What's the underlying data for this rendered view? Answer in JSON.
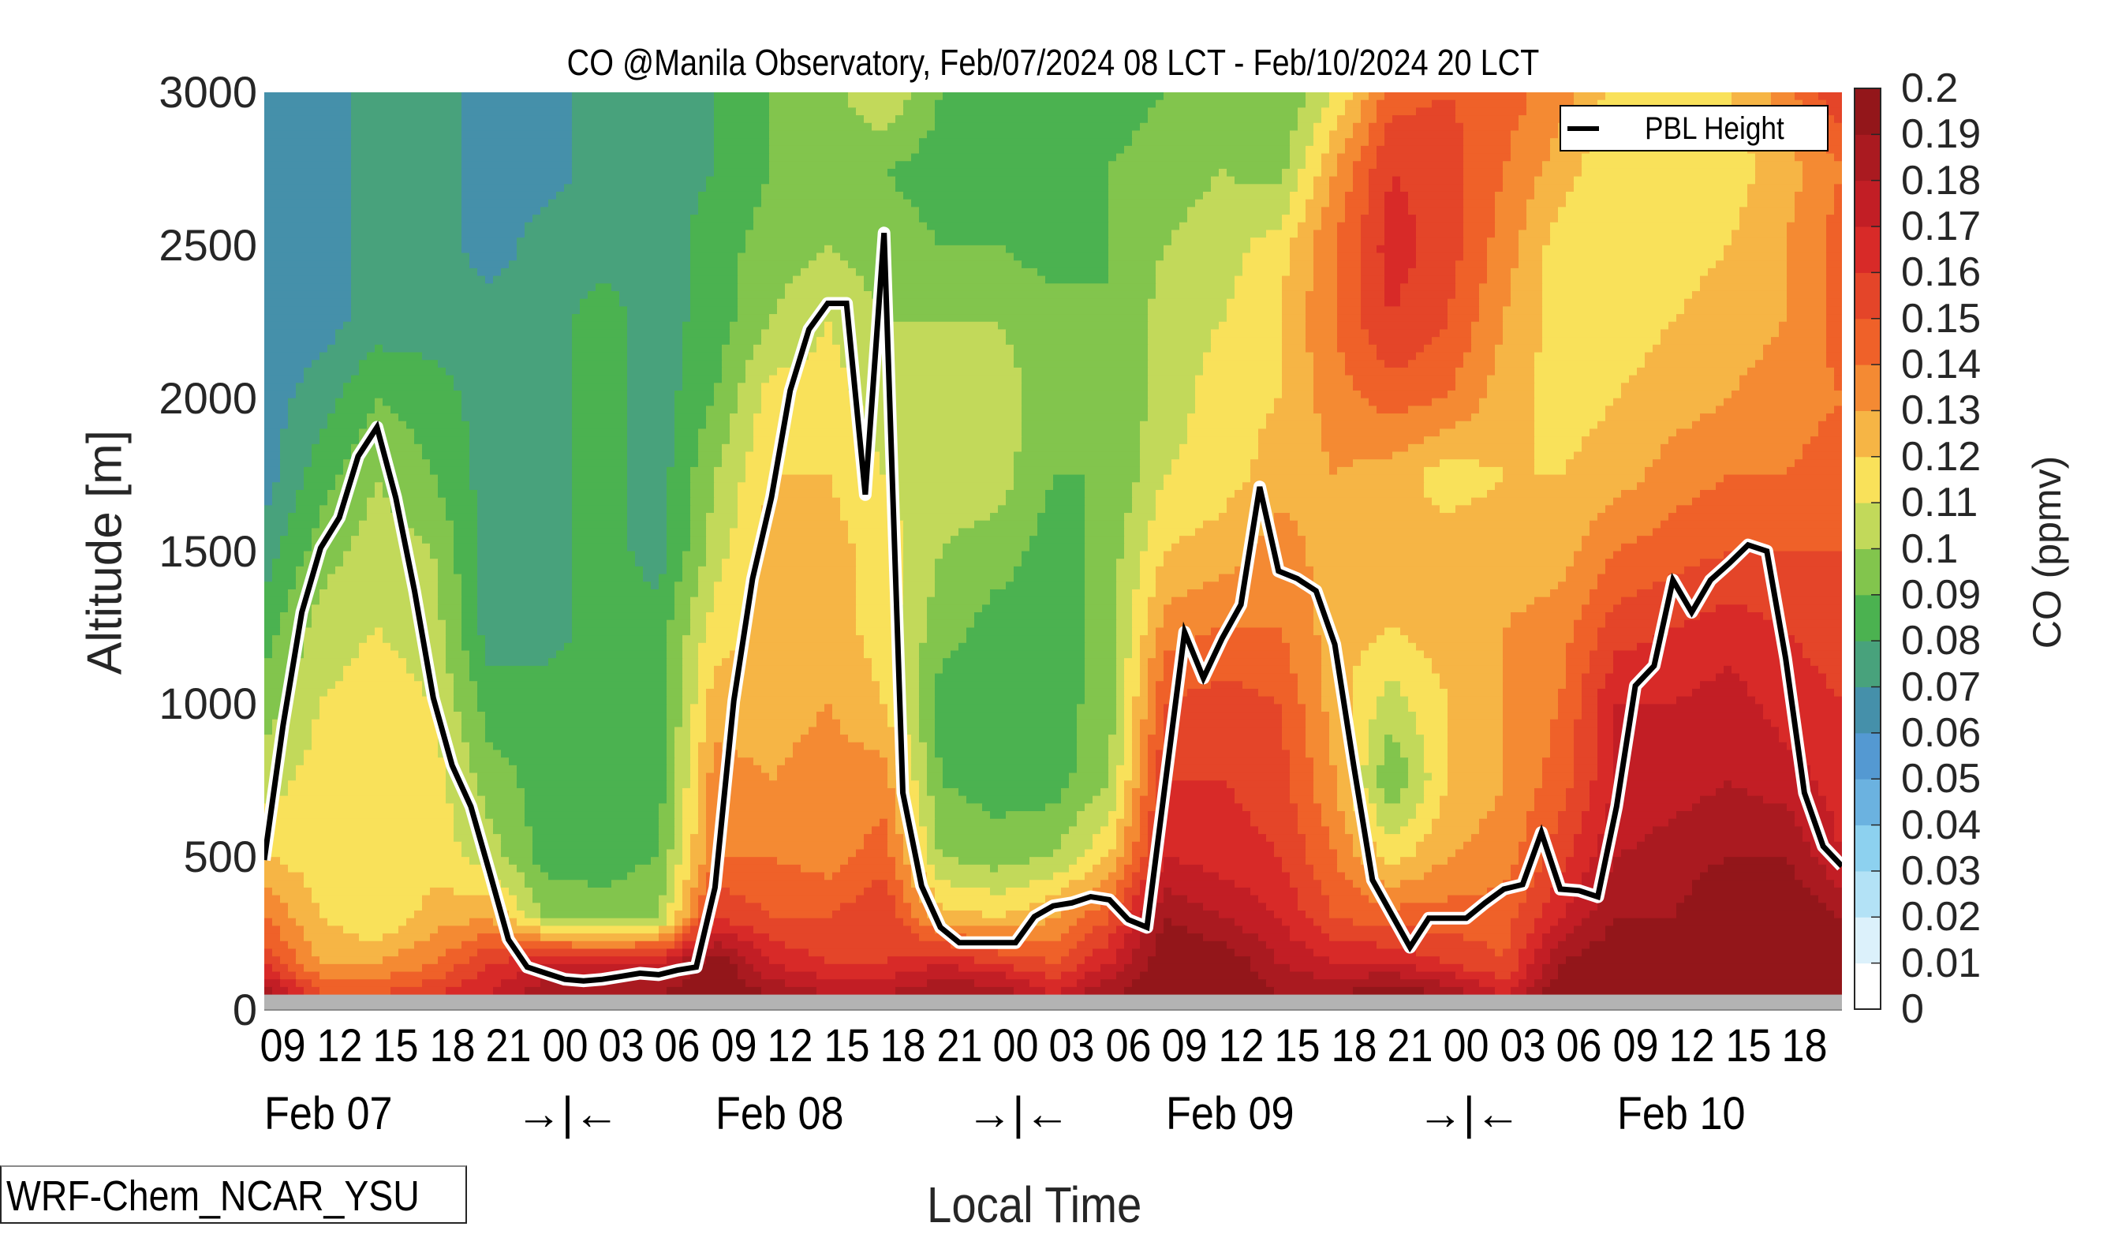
{
  "chart_data": {
    "type": "heatmap",
    "subtype": "filled-contour time-altitude cross-section with line overlay",
    "title": "CO @Manila Observatory, Feb/07/2024 08 LCT - Feb/10/2024 20 LCT",
    "xlabel": "Local Time",
    "ylabel": "Altitude [m]",
    "colorbar_label": "CO (ppmv)",
    "ylim": [
      0,
      3000
    ],
    "xlim_hours_from_start": [
      0,
      84
    ],
    "start": "Feb/07/2024 08 LCT",
    "end": "Feb/10/2024 20 LCT",
    "y_ticks": [
      "0",
      "500",
      "1000",
      "1500",
      "2000",
      "2500",
      "3000"
    ],
    "y_tick_values": [
      0,
      500,
      1000,
      1500,
      2000,
      2500,
      3000
    ],
    "x_tick_labels": [
      "09",
      "12",
      "15",
      "18",
      "21",
      "00",
      "03",
      "06",
      "09",
      "12",
      "15",
      "18",
      "21",
      "00",
      "03",
      "06",
      "09",
      "12",
      "15",
      "18",
      "21",
      "00",
      "03",
      "06",
      "09",
      "12",
      "15",
      "18"
    ],
    "x_tick_hours": [
      1,
      4,
      7,
      10,
      13,
      16,
      19,
      22,
      25,
      28,
      31,
      34,
      37,
      40,
      43,
      46,
      49,
      52,
      55,
      58,
      61,
      64,
      67,
      70,
      73,
      76,
      79,
      82
    ],
    "day_labels": [
      {
        "text": "Feb 07",
        "hour": 4
      },
      {
        "text": "Feb 08",
        "hour": 28
      },
      {
        "text": "Feb 09",
        "hour": 52
      },
      {
        "text": "Feb 10",
        "hour": 76
      }
    ],
    "day_separators": [
      {
        "text": "→|←",
        "hour": 16
      },
      {
        "text": "→|←",
        "hour": 40
      },
      {
        "text": "→|←",
        "hour": 64
      }
    ],
    "colorbar": {
      "levels": [
        0,
        0.01,
        0.02,
        0.03,
        0.04,
        0.05,
        0.06,
        0.07,
        0.08,
        0.09,
        0.1,
        0.11,
        0.12,
        0.13,
        0.14,
        0.15,
        0.16,
        0.17,
        0.18,
        0.19,
        0.2
      ],
      "tick_labels": [
        "0",
        "0.01",
        "0.02",
        "0.03",
        "0.04",
        "0.05",
        "0.06",
        "0.07",
        "0.08",
        "0.09",
        "0.1",
        "0.11",
        "0.12",
        "0.13",
        "0.14",
        "0.15",
        "0.16",
        "0.17",
        "0.18",
        "0.19",
        "0.2"
      ],
      "colors": [
        "#ffffff",
        "#dcf1fb",
        "#b3e2f6",
        "#8dd1ef",
        "#6bb2e0",
        "#5499d2",
        "#4590aa",
        "#48a27c",
        "#4bb250",
        "#82c54d",
        "#c2d95a",
        "#f9e15a",
        "#f6b545",
        "#f48a33",
        "#ef6129",
        "#e44529",
        "#d82a28",
        "#c21e25",
        "#aa1a20",
        "#93161a"
      ]
    },
    "ground_mask_color": "#b3b3b3",
    "ground_mask_top_m": 50,
    "grid_hours": [
      0,
      3,
      6,
      9,
      12,
      15,
      18,
      21,
      24,
      27,
      30,
      33,
      36,
      39,
      42,
      45,
      48,
      51,
      54,
      57,
      60,
      63,
      66,
      69,
      72,
      75,
      78,
      81,
      84
    ],
    "grid_altitudes": [
      50,
      150,
      300,
      500,
      750,
      1000,
      1250,
      1500,
      1750,
      2000,
      2250,
      2500,
      2750,
      3000
    ],
    "co_ppmv": [
      [
        0.19,
        0.15,
        0.15,
        0.16,
        0.17,
        0.19,
        0.19,
        0.19,
        0.2,
        0.19,
        0.18,
        0.18,
        0.19,
        0.19,
        0.17,
        0.19,
        0.2,
        0.2,
        0.19,
        0.19,
        0.2,
        0.19,
        0.17,
        0.2,
        0.2,
        0.2,
        0.2,
        0.2,
        0.2
      ],
      [
        0.16,
        0.13,
        0.13,
        0.14,
        0.16,
        0.17,
        0.17,
        0.17,
        0.2,
        0.17,
        0.16,
        0.16,
        0.17,
        0.16,
        0.15,
        0.17,
        0.2,
        0.2,
        0.18,
        0.17,
        0.17,
        0.16,
        0.15,
        0.19,
        0.2,
        0.2,
        0.2,
        0.2,
        0.2
      ],
      [
        0.14,
        0.12,
        0.11,
        0.125,
        0.13,
        0.1,
        0.095,
        0.1,
        0.16,
        0.15,
        0.15,
        0.16,
        0.125,
        0.12,
        0.13,
        0.15,
        0.19,
        0.18,
        0.17,
        0.15,
        0.145,
        0.145,
        0.145,
        0.17,
        0.19,
        0.19,
        0.2,
        0.2,
        0.19
      ],
      [
        0.12,
        0.115,
        0.115,
        0.115,
        0.105,
        0.085,
        0.085,
        0.09,
        0.14,
        0.14,
        0.135,
        0.145,
        0.1,
        0.095,
        0.1,
        0.12,
        0.17,
        0.165,
        0.16,
        0.14,
        0.115,
        0.13,
        0.135,
        0.155,
        0.18,
        0.185,
        0.19,
        0.19,
        0.17
      ],
      [
        0.105,
        0.115,
        0.115,
        0.115,
        0.095,
        0.085,
        0.085,
        0.085,
        0.135,
        0.13,
        0.135,
        0.135,
        0.09,
        0.085,
        0.085,
        0.1,
        0.16,
        0.16,
        0.155,
        0.13,
        0.09,
        0.12,
        0.13,
        0.145,
        0.17,
        0.175,
        0.18,
        0.175,
        0.165
      ],
      [
        0.095,
        0.11,
        0.115,
        0.11,
        0.085,
        0.085,
        0.085,
        0.085,
        0.125,
        0.125,
        0.13,
        0.12,
        0.085,
        0.085,
        0.085,
        0.095,
        0.15,
        0.155,
        0.15,
        0.125,
        0.105,
        0.12,
        0.13,
        0.14,
        0.17,
        0.17,
        0.175,
        0.165,
        0.16
      ],
      [
        0.085,
        0.105,
        0.11,
        0.105,
        0.075,
        0.075,
        0.085,
        0.085,
        0.115,
        0.125,
        0.125,
        0.115,
        0.095,
        0.085,
        0.085,
        0.095,
        0.135,
        0.14,
        0.14,
        0.125,
        0.12,
        0.125,
        0.13,
        0.135,
        0.155,
        0.16,
        0.165,
        0.16,
        0.155
      ],
      [
        0.075,
        0.095,
        0.105,
        0.1,
        0.075,
        0.075,
        0.085,
        0.075,
        0.105,
        0.125,
        0.125,
        0.115,
        0.1,
        0.095,
        0.085,
        0.095,
        0.12,
        0.125,
        0.135,
        0.125,
        0.12,
        0.125,
        0.125,
        0.125,
        0.14,
        0.145,
        0.15,
        0.15,
        0.15
      ],
      [
        0.065,
        0.085,
        0.1,
        0.09,
        0.075,
        0.075,
        0.085,
        0.075,
        0.1,
        0.12,
        0.12,
        0.11,
        0.105,
        0.105,
        0.09,
        0.09,
        0.11,
        0.115,
        0.125,
        0.13,
        0.125,
        0.115,
        0.12,
        0.12,
        0.125,
        0.135,
        0.14,
        0.14,
        0.145
      ],
      [
        0.065,
        0.075,
        0.09,
        0.085,
        0.075,
        0.075,
        0.085,
        0.075,
        0.09,
        0.115,
        0.115,
        0.105,
        0.105,
        0.105,
        0.095,
        0.09,
        0.105,
        0.115,
        0.12,
        0.135,
        0.145,
        0.14,
        0.125,
        0.115,
        0.12,
        0.125,
        0.13,
        0.135,
        0.14
      ],
      [
        0.065,
        0.065,
        0.075,
        0.075,
        0.075,
        0.075,
        0.085,
        0.075,
        0.085,
        0.1,
        0.11,
        0.1,
        0.1,
        0.1,
        0.095,
        0.09,
        0.105,
        0.11,
        0.12,
        0.14,
        0.16,
        0.15,
        0.13,
        0.115,
        0.115,
        0.12,
        0.125,
        0.13,
        0.145
      ],
      [
        0.065,
        0.065,
        0.075,
        0.075,
        0.065,
        0.075,
        0.075,
        0.075,
        0.085,
        0.095,
        0.1,
        0.095,
        0.09,
        0.09,
        0.085,
        0.09,
        0.1,
        0.105,
        0.115,
        0.14,
        0.165,
        0.155,
        0.135,
        0.115,
        0.11,
        0.115,
        0.12,
        0.13,
        0.145
      ],
      [
        0.065,
        0.065,
        0.075,
        0.075,
        0.065,
        0.065,
        0.075,
        0.075,
        0.08,
        0.09,
        0.095,
        0.09,
        0.085,
        0.085,
        0.085,
        0.09,
        0.095,
        0.1,
        0.095,
        0.13,
        0.16,
        0.155,
        0.14,
        0.125,
        0.11,
        0.11,
        0.115,
        0.125,
        0.14
      ],
      [
        0.065,
        0.065,
        0.075,
        0.075,
        0.065,
        0.065,
        0.075,
        0.075,
        0.08,
        0.09,
        0.095,
        0.11,
        0.09,
        0.085,
        0.08,
        0.085,
        0.09,
        0.095,
        0.09,
        0.11,
        0.145,
        0.15,
        0.145,
        0.135,
        0.115,
        0.115,
        0.12,
        0.135,
        0.16
      ]
    ],
    "series": [
      {
        "name": "PBL Height",
        "type": "line",
        "color": "#000000",
        "halo_color": "#ffffff",
        "hours": [
          0,
          1,
          2,
          3,
          4,
          5,
          6,
          7,
          8,
          9,
          10,
          11,
          12,
          13,
          14,
          15,
          16,
          17,
          18,
          19,
          20,
          21,
          22,
          23,
          24,
          25,
          26,
          27,
          28,
          29,
          30,
          31,
          32,
          33,
          34,
          35,
          36,
          37,
          38,
          39,
          40,
          41,
          42,
          43,
          44,
          45,
          46,
          47,
          48,
          49,
          50,
          51,
          52,
          53,
          54,
          55,
          56,
          57,
          58,
          59,
          60,
          61,
          62,
          63,
          64,
          65,
          66,
          67,
          68,
          69,
          70,
          71,
          72,
          73,
          74,
          75,
          76,
          77,
          78,
          79,
          80,
          81,
          82,
          83,
          84
        ],
        "values_m": [
          490,
          930,
          1300,
          1510,
          1610,
          1810,
          1905,
          1675,
          1370,
          1020,
          800,
          665,
          450,
          230,
          140,
          120,
          100,
          95,
          100,
          110,
          120,
          115,
          130,
          140,
          400,
          1010,
          1410,
          1675,
          2025,
          2225,
          2310,
          2310,
          1685,
          2540,
          710,
          405,
          270,
          220,
          220,
          220,
          220,
          305,
          340,
          350,
          370,
          360,
          295,
          270,
          755,
          1235,
          1085,
          1215,
          1325,
          1710,
          1435,
          1410,
          1370,
          1195,
          800,
          425,
          315,
          205,
          300,
          300,
          300,
          350,
          395,
          410,
          580,
          395,
          390,
          370,
          665,
          1060,
          1125,
          1405,
          1300,
          1405,
          1460,
          1520,
          1500,
          1150,
          710,
          535,
          470
        ]
      }
    ],
    "legend": {
      "entries": [
        "PBL Height"
      ],
      "position": "top-right"
    },
    "annotation": "WRF-Chem_NCAR_YSU"
  }
}
